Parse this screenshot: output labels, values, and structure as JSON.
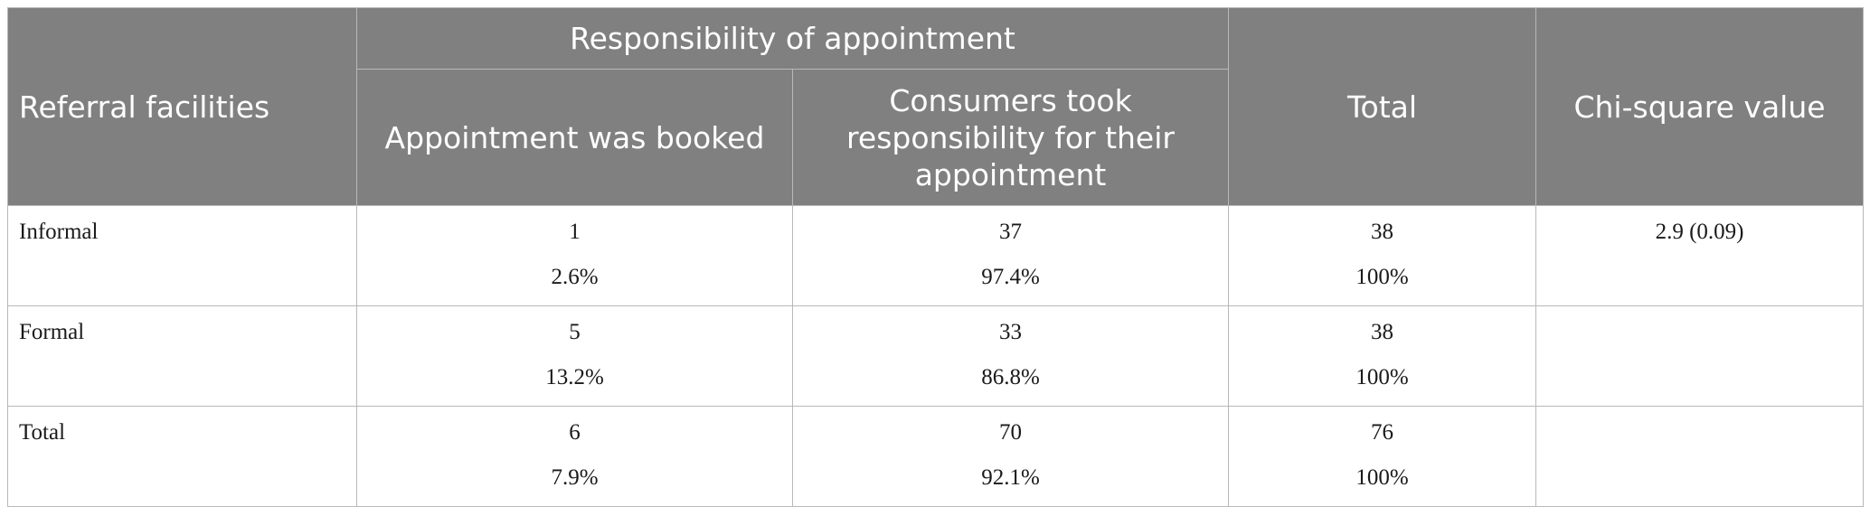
{
  "header": {
    "referral_facilities": "Referral facilities",
    "responsibility_group": "Responsibility of appointment",
    "appointment_booked": "Appointment was booked",
    "consumers_responsibility": "Consumers took responsibility for their appointment",
    "total": "Total",
    "chi_square": "Chi-square value"
  },
  "rows": [
    {
      "label": "Informal",
      "booked": {
        "count": "1",
        "pct": "2.6%"
      },
      "consumers": {
        "count": "37",
        "pct": "97.4%"
      },
      "total": {
        "count": "38",
        "pct": "100%"
      },
      "chi": "2.9 (0.09)"
    },
    {
      "label": "Formal",
      "booked": {
        "count": "5",
        "pct": "13.2%"
      },
      "consumers": {
        "count": "33",
        "pct": "86.8%"
      },
      "total": {
        "count": "38",
        "pct": "100%"
      },
      "chi": ""
    },
    {
      "label": "Total",
      "booked": {
        "count": "6",
        "pct": "7.9%"
      },
      "consumers": {
        "count": "70",
        "pct": "92.1%"
      },
      "total": {
        "count": "76",
        "pct": "100%"
      },
      "chi": ""
    }
  ]
}
